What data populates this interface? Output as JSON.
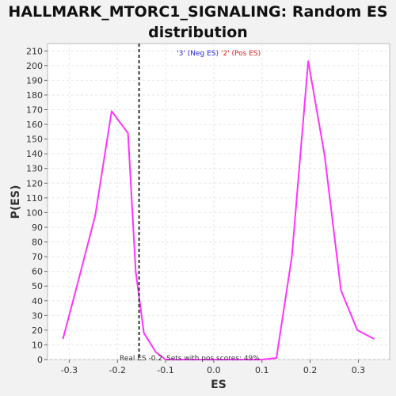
{
  "chart_data": {
    "type": "line",
    "title_line1": "HALLMARK_MTORC1_SIGNALING: Random ES",
    "title_line2": "distribution",
    "xlabel": "ES",
    "ylabel": "P(ES)",
    "xlim": [
      -0.345,
      0.365
    ],
    "ylim": [
      0,
      215
    ],
    "xticks": [
      -0.3,
      -0.2,
      -0.1,
      0.0,
      0.1,
      0.2,
      0.3
    ],
    "xtick_labels": [
      "-0.3",
      "-0.2",
      "-0.1",
      "0.0",
      "0.1",
      "0.2",
      "0.3"
    ],
    "yticks": [
      0,
      10,
      20,
      30,
      40,
      50,
      60,
      70,
      80,
      90,
      100,
      110,
      120,
      130,
      140,
      150,
      160,
      170,
      180,
      190,
      200,
      210
    ],
    "grid": true,
    "series": [
      {
        "color": "#ff33ff",
        "x": [
          -0.313,
          -0.28,
          -0.246,
          -0.212,
          -0.178,
          -0.162,
          -0.145,
          -0.12,
          -0.1,
          0.0,
          0.1,
          0.13,
          0.162,
          0.196,
          0.23,
          0.264,
          0.298,
          0.333
        ],
        "y": [
          14,
          55,
          98,
          169,
          154,
          60,
          18,
          5,
          0,
          0,
          0,
          1,
          70,
          203,
          139,
          47,
          20,
          14
        ]
      }
    ],
    "real_es": -0.155,
    "real_es_color": "#333333",
    "legend": {
      "neg_label": "'3' (Neg ES)",
      "neg_color": "#2222dd",
      "pos_label": "'2' (Pos ES)",
      "pos_color": "#dd2222"
    },
    "annotation_real_es": "Real ES -0.2",
    "annotation_pos_scores": "Sets with pos scores: 49%"
  }
}
